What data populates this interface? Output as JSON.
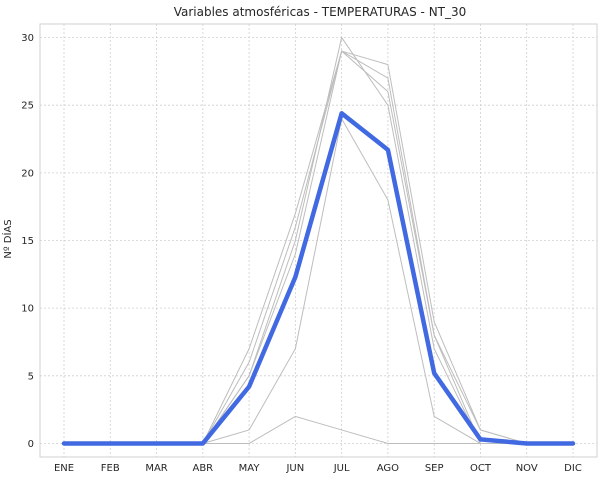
{
  "chart_data": {
    "type": "line",
    "title": "Variables atmosféricas - TEMPERATURAS - NT_30",
    "xlabel": "",
    "ylabel": "Nº DÍAS",
    "ylim": [
      -1,
      31
    ],
    "yticks": [
      0,
      5,
      10,
      15,
      20,
      25,
      30
    ],
    "grid": true,
    "legend": "none",
    "categories": [
      "ENE",
      "FEB",
      "MAR",
      "ABR",
      "MAY",
      "JUN",
      "JUL",
      "AGO",
      "SEP",
      "OCT",
      "NOV",
      "DIC"
    ],
    "background_series_color": "#bdbdbd",
    "background_series": [
      [
        0,
        0,
        0,
        0,
        7,
        17,
        29,
        28,
        9,
        1,
        0,
        0
      ],
      [
        0,
        0,
        0,
        0,
        6,
        16,
        29,
        27,
        8,
        1,
        0,
        0
      ],
      [
        0,
        0,
        0,
        0,
        5,
        15,
        30,
        25,
        7,
        0,
        0,
        0
      ],
      [
        0,
        0,
        0,
        0,
        5,
        14,
        29,
        26,
        8,
        0,
        0,
        0
      ],
      [
        0,
        0,
        0,
        0,
        1,
        7,
        24,
        18,
        2,
        0,
        0,
        0
      ],
      [
        0,
        0,
        0,
        0,
        0,
        2,
        1,
        0,
        0,
        0,
        0,
        0
      ]
    ],
    "main_series_color": "#4169e1",
    "main_series": [
      0,
      0,
      0,
      0,
      4.2,
      12.3,
      24.4,
      21.7,
      5.2,
      0.3,
      0,
      0
    ]
  }
}
